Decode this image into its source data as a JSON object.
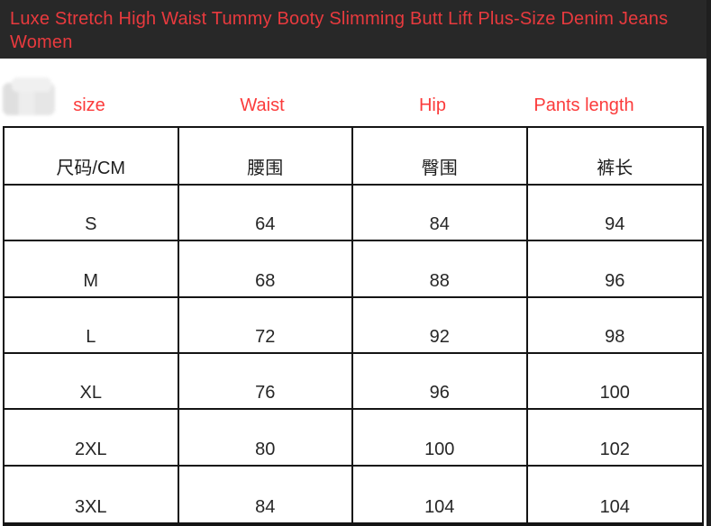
{
  "header": {
    "title": "Luxe Stretch High Waist Tummy Booty Slimming Butt Lift Plus-Size Denim Jeans Women"
  },
  "column_labels": {
    "size": "size",
    "waist": "Waist",
    "hip": "Hip",
    "pants_length": "Pants length"
  },
  "colors": {
    "title_bar_background": "#282828",
    "title_text_red": "#e93a3e",
    "label_red": "#fb3b3b",
    "table_border_black": "#141414"
  },
  "chart_data": {
    "type": "table",
    "columns": [
      "尺码/CM",
      "腰围",
      "臀围",
      "裤长"
    ],
    "rows": [
      [
        "S",
        "64",
        "84",
        "94"
      ],
      [
        "M",
        "68",
        "88",
        "96"
      ],
      [
        "L",
        "72",
        "92",
        "98"
      ],
      [
        "XL",
        "76",
        "96",
        "100"
      ],
      [
        "2XL",
        "80",
        "100",
        "102"
      ],
      [
        "3XL",
        "84",
        "104",
        "104"
      ]
    ],
    "units": "CM",
    "layout": "4 equal columns, header row + 6 size rows, black grid borders, values bottom-aligned and centered"
  }
}
